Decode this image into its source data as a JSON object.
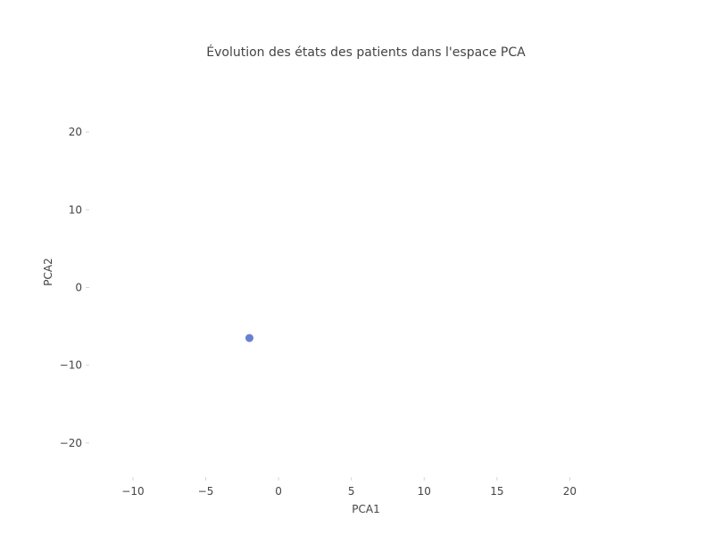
{
  "chart_data": {
    "type": "scatter",
    "title": "Évolution des états des patients dans l'espace PCA",
    "xlabel": "PCA1",
    "ylabel": "PCA2",
    "xlim": [
      -13,
      25
    ],
    "ylim": [
      -24.5,
      28.5
    ],
    "xticks": [
      -10,
      -5,
      0,
      5,
      10,
      15,
      20
    ],
    "yticks": [
      20,
      10,
      0,
      -10,
      -20
    ],
    "xtick_labels": [
      "−10",
      "−5",
      "0",
      "5",
      "10",
      "15",
      "20"
    ],
    "ytick_labels": [
      "20",
      "10",
      "0",
      "−10",
      "−20"
    ],
    "grid": false,
    "points": [
      {
        "x": -2,
        "y": -6.5
      }
    ],
    "point_color": "#4c6acb"
  }
}
